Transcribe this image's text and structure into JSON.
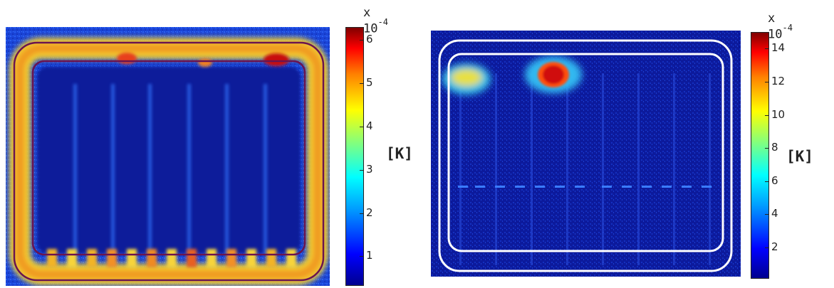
{
  "panels": [
    {
      "colorbar": {
        "multiplier_text": "x 10",
        "exponent": "-4",
        "unit": "[K]",
        "ticks": [
          "1",
          "2",
          "3",
          "4",
          "5",
          "6"
        ],
        "tick_values": [
          1,
          2,
          3,
          4,
          5,
          6
        ],
        "range": [
          0.35,
          6.3
        ]
      }
    },
    {
      "colorbar": {
        "multiplier_text": "x 10",
        "exponent": "-4",
        "unit": "[K]",
        "ticks": [
          "2",
          "4",
          "6",
          "8",
          "10",
          "12",
          "14"
        ],
        "tick_values": [
          2,
          4,
          6,
          8,
          10,
          12,
          14
        ],
        "range": [
          0.2,
          15
        ]
      }
    }
  ],
  "colormap": "jet"
}
